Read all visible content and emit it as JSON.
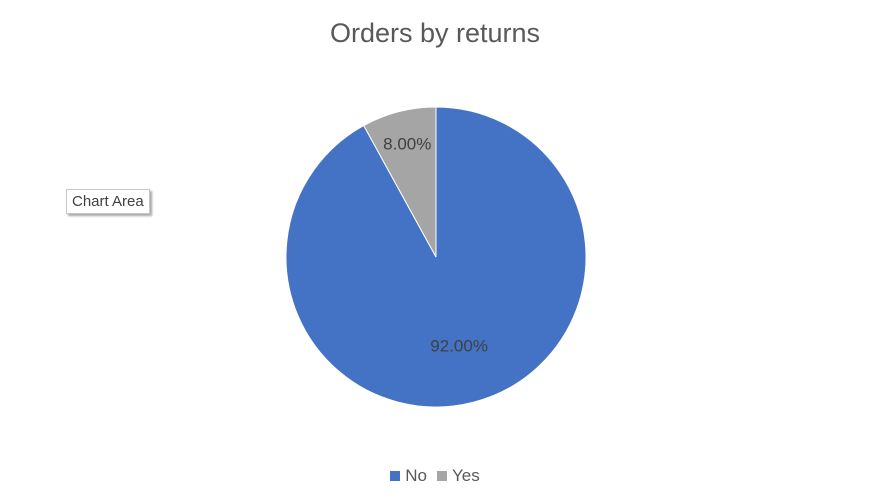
{
  "tooltip": {
    "label": "Chart Area"
  },
  "colors": {
    "no": "#4472c4",
    "yes": "#a5a5a5"
  },
  "chart_data": {
    "type": "pie",
    "title": "Orders by returns",
    "categories": [
      "No",
      "Yes"
    ],
    "values": [
      92.0,
      8.0
    ],
    "data_labels": [
      "92.00%",
      "8.00%"
    ],
    "colors": [
      "#4472c4",
      "#a5a5a5"
    ],
    "legend": "bottom",
    "start_angle": "top, clockwise"
  }
}
